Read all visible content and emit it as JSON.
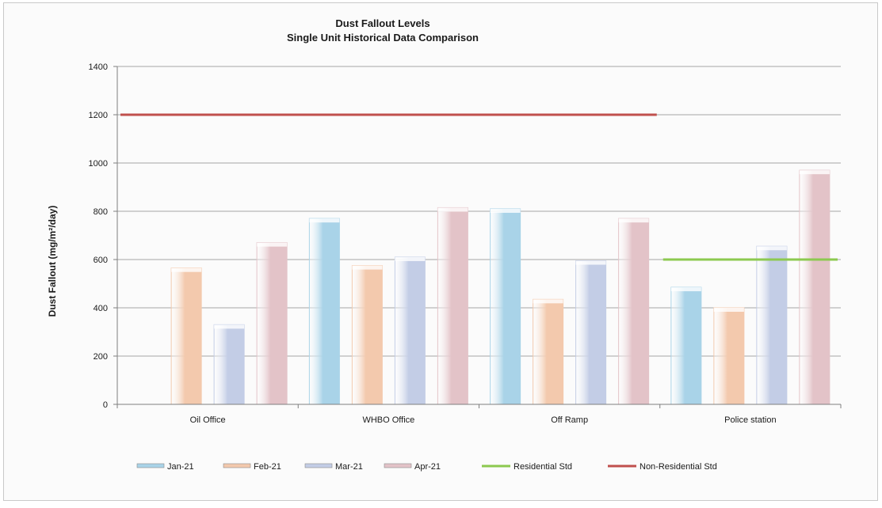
{
  "chart_data": {
    "type": "bar",
    "title": "Dust Fallout Levels",
    "subtitle": "Single Unit Historical Data Comparison",
    "xlabel": "",
    "ylabel": "Dust Fallout (mg/m²/day)",
    "ylim": [
      0,
      1400
    ],
    "yticks": [
      0,
      200,
      400,
      600,
      800,
      1000,
      1200,
      1400
    ],
    "categories": [
      "Oil Office",
      "WHBO Office",
      "Off Ramp",
      "Police station"
    ],
    "grid": true,
    "legend_position": "bottom",
    "series": [
      {
        "name": "Jan-21",
        "color": "#a9d3e8",
        "values": [
          null,
          770,
          810,
          485
        ]
      },
      {
        "name": "Feb-21",
        "color": "#f3c9ad",
        "values": [
          565,
          575,
          435,
          400
        ]
      },
      {
        "name": "Mar-21",
        "color": "#c3cde6",
        "values": [
          330,
          610,
          595,
          655
        ]
      },
      {
        "name": "Apr-21",
        "color": "#e3c3c8",
        "values": [
          670,
          815,
          770,
          970
        ]
      }
    ],
    "reference_lines": [
      {
        "name": "Residential Std",
        "color": "#8cc94f",
        "value": 600,
        "categories": [
          "Police station"
        ]
      },
      {
        "name": "Non-Residential Std",
        "color": "#c0504d",
        "value": 1200,
        "categories": [
          "Oil Office",
          "WHBO Office",
          "Off Ramp"
        ]
      }
    ]
  }
}
